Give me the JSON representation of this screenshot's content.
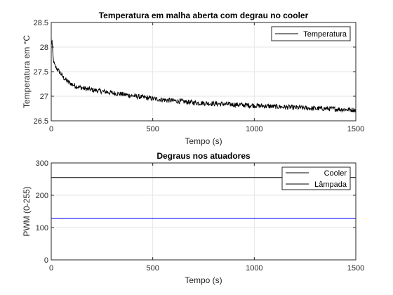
{
  "chart_data": [
    {
      "type": "line",
      "title": "Temperatura em malha aberta com degrau no cooler",
      "xlabel": "Tempo (s)",
      "ylabel": "Temperatura em °C",
      "xlim": [
        0,
        1500
      ],
      "ylim": [
        26.5,
        28.5
      ],
      "xticks": [
        0,
        500,
        1000,
        1500
      ],
      "yticks": [
        26.5,
        27,
        27.5,
        28,
        28.5
      ],
      "ytick_labels": [
        "26.5",
        "27",
        "27.5",
        "28",
        "28.5"
      ],
      "grid": true,
      "legend_position": "top-right",
      "series": [
        {
          "name": "Temperatura",
          "color": "#000000",
          "x": [
            0,
            3,
            6,
            10,
            15,
            20,
            30,
            40,
            50,
            60,
            80,
            100,
            125,
            150,
            175,
            200,
            250,
            300,
            350,
            400,
            450,
            500,
            550,
            600,
            650,
            700,
            750,
            800,
            850,
            900,
            950,
            1000,
            1050,
            1100,
            1150,
            1200,
            1250,
            1300,
            1350,
            1400,
            1450,
            1500
          ],
          "y": [
            28.0,
            28.2,
            27.95,
            27.75,
            27.65,
            27.6,
            27.55,
            27.5,
            27.44,
            27.38,
            27.3,
            27.25,
            27.2,
            27.17,
            27.15,
            27.13,
            27.1,
            27.07,
            27.04,
            27.01,
            26.98,
            26.95,
            26.93,
            26.91,
            26.89,
            26.87,
            26.86,
            26.85,
            26.84,
            26.83,
            26.82,
            26.81,
            26.8,
            26.79,
            26.78,
            26.77,
            26.76,
            26.75,
            26.75,
            26.74,
            26.73,
            26.72
          ],
          "noise_amplitude": 0.05
        }
      ]
    },
    {
      "type": "line",
      "title": "Degraus nos atuadores",
      "xlabel": "Tempo (s)",
      "ylabel": "PWM (0-255)",
      "xlim": [
        0,
        1500
      ],
      "ylim": [
        0,
        300
      ],
      "xticks": [
        0,
        500,
        1000,
        1500
      ],
      "yticks": [
        0,
        100,
        200,
        300
      ],
      "grid": true,
      "legend_position": "top-right",
      "series": [
        {
          "name": "Cooler",
          "color": "#000000",
          "x": [
            0,
            1500
          ],
          "y": [
            255,
            255
          ]
        },
        {
          "name": "Lâmpada",
          "color": "#0000ff",
          "x": [
            0,
            1500
          ],
          "y": [
            128,
            128
          ]
        }
      ]
    }
  ]
}
